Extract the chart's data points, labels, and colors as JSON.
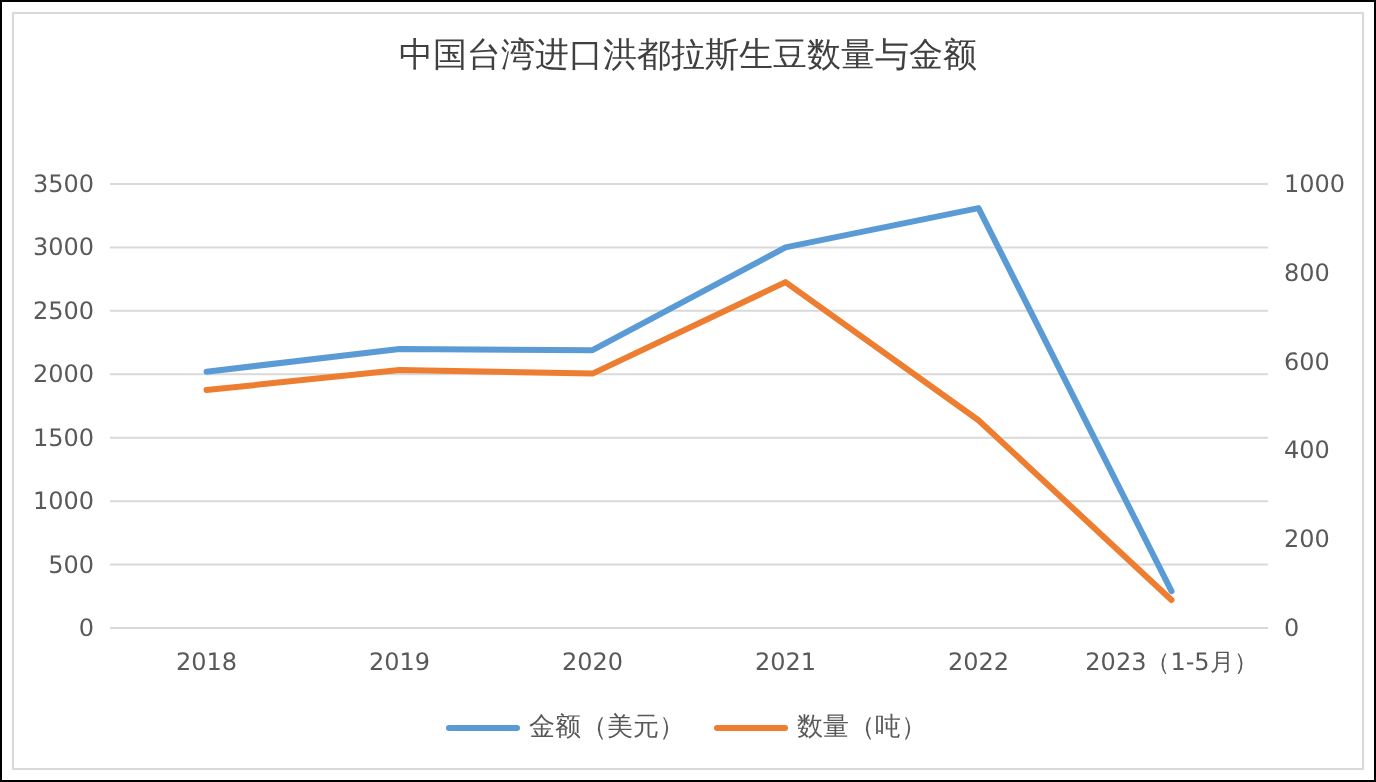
{
  "chart_data": {
    "type": "line",
    "title": "中国台湾进口洪都拉斯生豆数量与金额",
    "categories": [
      "2018",
      "2019",
      "2020",
      "2021",
      "2022",
      "2023（1-5月）"
    ],
    "series": [
      {
        "name": "金额（美元）",
        "color": "#5b9bd5",
        "values": [
          2020,
          2200,
          2190,
          3000,
          3310,
          290
        ]
      },
      {
        "name": "数量（吨）",
        "color": "#ed7d31",
        "axis": "y2",
        "values": [
          536,
          581,
          573,
          779,
          468,
          63
        ]
      }
    ],
    "ylim": [
      0,
      3500
    ],
    "yticks": [
      0,
      500,
      1000,
      1500,
      2000,
      2500,
      3000,
      3500
    ],
    "y2lim": [
      0,
      1000
    ],
    "y2ticks": [
      0,
      200,
      400,
      600,
      800,
      1000
    ],
    "grid": "y",
    "legend": "bottom",
    "marker": "none",
    "line_style": "solid"
  }
}
